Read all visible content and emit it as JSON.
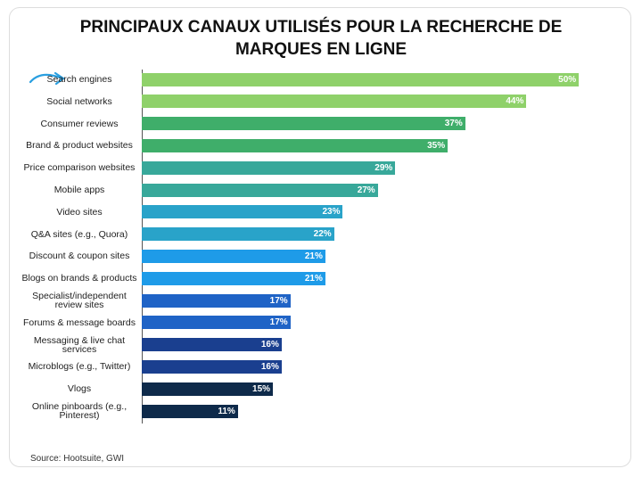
{
  "chart_data": {
    "type": "bar",
    "orientation": "horizontal",
    "title": "PRINCIPAUX CANAUX UTILISÉS POUR LA RECHERCHE DE MARQUES EN LIGNE",
    "categories": [
      "Search engines",
      "Social networks",
      "Consumer reviews",
      "Brand & product websites",
      "Price comparison websites",
      "Mobile apps",
      "Video sites",
      "Q&A sites (e.g., Quora)",
      "Discount & coupon sites",
      "Blogs on brands & products",
      "Specialist/independent review sites",
      "Forums & message boards",
      "Messaging & live chat services",
      "Microblogs (e.g., Twitter)",
      "Vlogs",
      "Online pinboards (e.g., Pinterest)"
    ],
    "values": [
      50,
      44,
      37,
      35,
      29,
      27,
      23,
      22,
      21,
      21,
      17,
      17,
      16,
      16,
      15,
      11
    ],
    "value_labels": [
      "50%",
      "44%",
      "37%",
      "35%",
      "29%",
      "27%",
      "23%",
      "22%",
      "21%",
      "21%",
      "17%",
      "17%",
      "16%",
      "16%",
      "15%",
      "11%"
    ],
    "colors": [
      "#8fd16a",
      "#8fd16a",
      "#3fae6a",
      "#3fae6a",
      "#38a89a",
      "#38a89a",
      "#29a3c9",
      "#29a3c9",
      "#1e9be8",
      "#1e9be8",
      "#1f63c6",
      "#1f63c6",
      "#1a3f8f",
      "#1a3f8f",
      "#0e2a4a",
      "#0e2a4a"
    ],
    "xlim": [
      0,
      51
    ],
    "source": "Source: Hootsuite, GWI"
  }
}
